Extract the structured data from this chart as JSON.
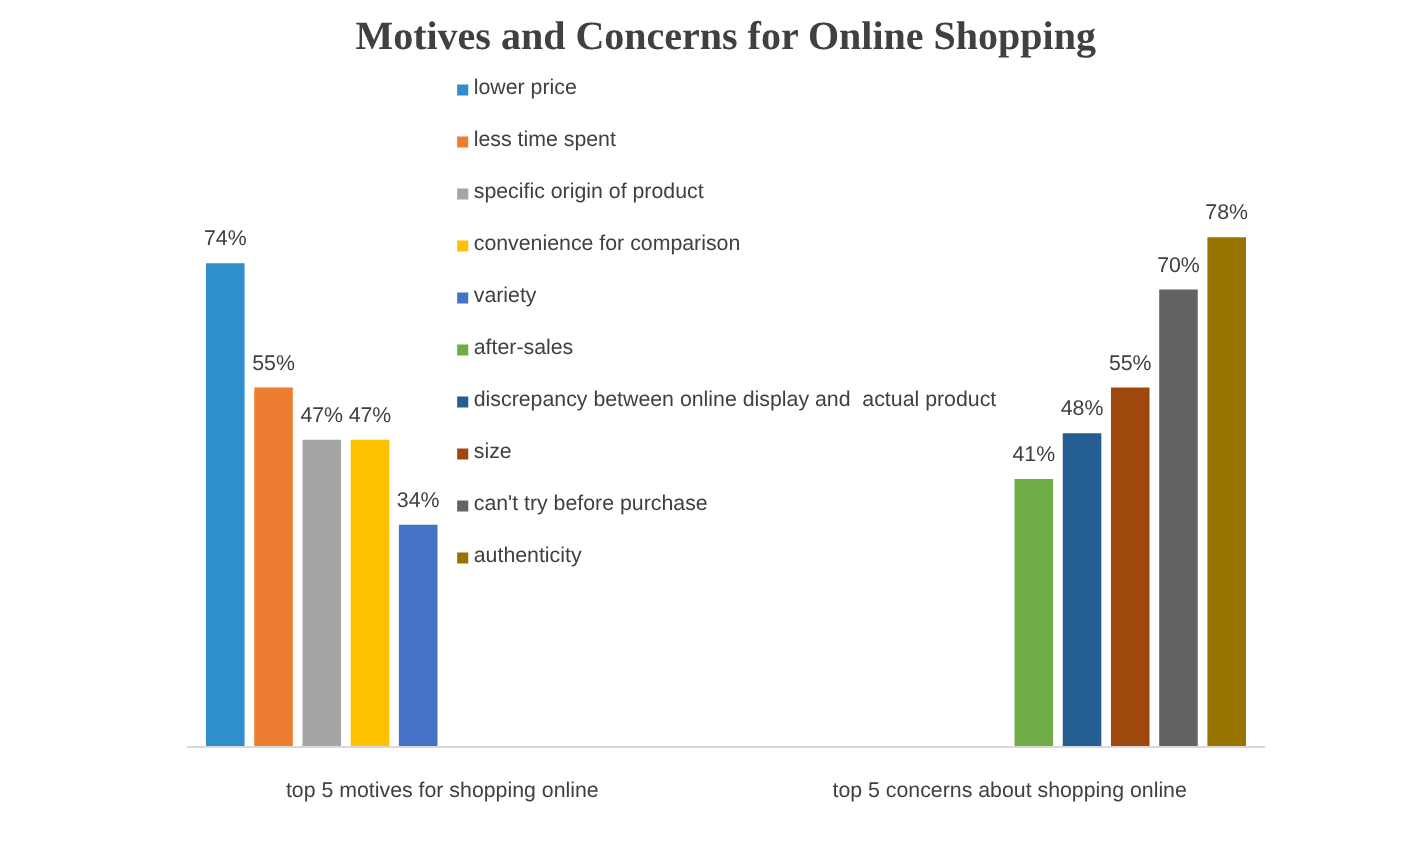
{
  "chart_data": {
    "type": "bar",
    "title": "Motives and Concerns for Online Shopping",
    "categories": [
      "top 5 motives for shopping online",
      "top 5 concerns about shopping online"
    ],
    "series": [
      {
        "name": "lower price",
        "color": "#2e8fcc",
        "values": [
          74,
          null
        ],
        "value_labels": [
          "74%",
          null
        ]
      },
      {
        "name": "less time spent",
        "color": "#ed7d31",
        "values": [
          55,
          null
        ],
        "value_labels": [
          "55%",
          null
        ]
      },
      {
        "name": "specific origin of product",
        "color": "#a5a5a5",
        "values": [
          47,
          null
        ],
        "value_labels": [
          "47%",
          null
        ]
      },
      {
        "name": "convenience for comparison",
        "color": "#ffc000",
        "values": [
          47,
          null
        ],
        "value_labels": [
          "47%",
          null
        ]
      },
      {
        "name": "variety",
        "color": "#4472c4",
        "values": [
          34,
          null
        ],
        "value_labels": [
          "34%",
          null
        ]
      },
      {
        "name": "after-sales",
        "color": "#70ad47",
        "values": [
          null,
          41
        ],
        "value_labels": [
          null,
          "41%"
        ]
      },
      {
        "name": "discrepancy between online display and  actual product",
        "color": "#255e91",
        "values": [
          null,
          48
        ],
        "value_labels": [
          null,
          "48%"
        ]
      },
      {
        "name": "size",
        "color": "#9e480e",
        "values": [
          null,
          55
        ],
        "value_labels": [
          null,
          "55%"
        ]
      },
      {
        "name": "can't try before purchase",
        "color": "#636363",
        "values": [
          null,
          70
        ],
        "value_labels": [
          null,
          "70%"
        ]
      },
      {
        "name": "authenticity",
        "color": "#997300",
        "values": [
          null,
          78
        ],
        "value_labels": [
          null,
          "78%"
        ]
      }
    ],
    "legend": "top",
    "grid": false
  }
}
